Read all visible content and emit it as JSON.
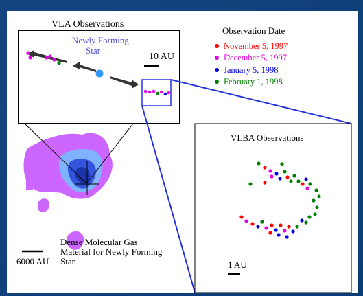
{
  "vla": {
    "title": "VLA Observations",
    "star_label_line1": "Newly Forming",
    "star_label_line2": "Star",
    "scale_label": "10 AU"
  },
  "legend": {
    "title": "Observation Date",
    "entries": [
      {
        "label": "November 5, 1997",
        "color": "#ff0000"
      },
      {
        "label": "December 5, 1997",
        "color": "#e600e6"
      },
      {
        "label": "January 5, 1998",
        "color": "#0000e6"
      },
      {
        "label": "February 1, 1998",
        "color": "#008000"
      }
    ]
  },
  "gas": {
    "label_line1": "Dense Molecular Gas",
    "label_line2": "Material for Newly Forming",
    "label_line3": "Star",
    "scale_label": "6000 AU"
  },
  "vlba": {
    "title": "VLBA Observations",
    "scale_label": "1 AU"
  },
  "colors": {
    "background": "#0d3f7c",
    "contour_outer": "#cc66ff",
    "contour_mid": "#7fb2ff",
    "contour_inner": "#3355dd",
    "contour_core": "#1a33aa",
    "arrow": "#333333",
    "star": "#3399ff",
    "zoom_line": "#2233dd"
  }
}
